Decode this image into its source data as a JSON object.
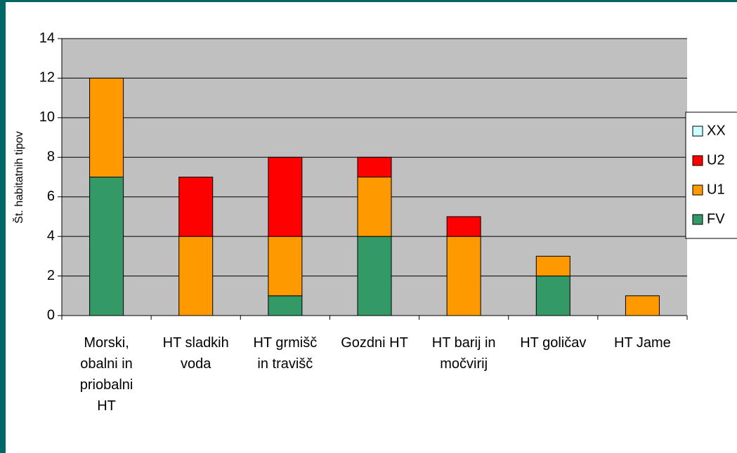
{
  "chart_data": {
    "type": "stacked_bar",
    "ylabel": "Št. habitatnih tipov",
    "categories": [
      "Morski, obalni in priobalni HT",
      "HT sladkih voda",
      "HT grmišč in travišč",
      "Gozdni HT",
      "HT barij in močvirij",
      "HT goličav",
      "HT Jame"
    ],
    "series": [
      {
        "name": "FV",
        "color": "#339966",
        "values": [
          7,
          0,
          1,
          4,
          0,
          2,
          0
        ]
      },
      {
        "name": "U1",
        "color": "#ff9900",
        "values": [
          5,
          4,
          3,
          3,
          4,
          1,
          1
        ]
      },
      {
        "name": "U2",
        "color": "#ff0000",
        "values": [
          0,
          3,
          4,
          1,
          1,
          0,
          0
        ]
      },
      {
        "name": "XX",
        "color": "#ccffff",
        "values": [
          0,
          0,
          0,
          0,
          0,
          0,
          0
        ]
      }
    ],
    "ylim": [
      0,
      14
    ],
    "yticks": [
      0,
      2,
      4,
      6,
      8,
      10,
      12,
      14
    ],
    "grid": true,
    "legend": "right"
  }
}
